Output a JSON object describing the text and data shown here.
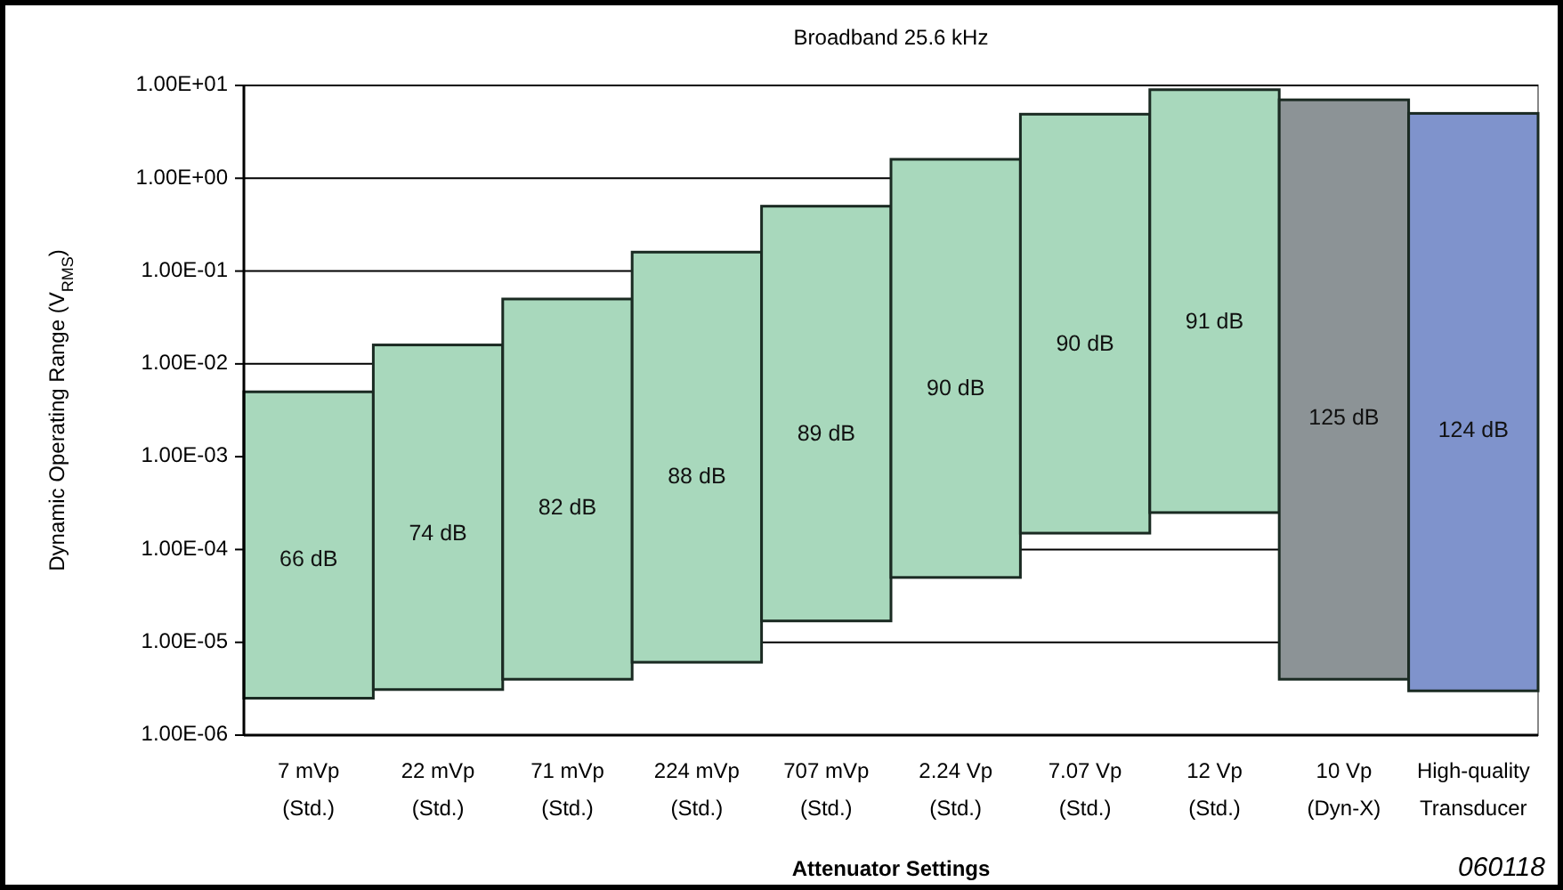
{
  "chart_data": {
    "type": "bar",
    "title": "Broadband 25.6 kHz",
    "xlabel": "Attenuator Settings",
    "ylabel": "Dynamic Operating Range (V$_{RMS}$)",
    "categories": [
      "7 mVp\n(Std.)",
      "22 mVp\n(Std.)",
      "71 mVp\n(Std.)",
      "224 mVp\n(Std.)",
      "707 mVp\n(Std.)",
      "2.24 Vp\n(Std.)",
      "7.07 Vp\n(Std.)",
      "12 Vp\n(Std.)",
      "10 Vp\n(Dyn-X)",
      "High-quality\nTransducer"
    ],
    "base": [
      2.5e-06,
      3.1e-06,
      4e-06,
      6.1e-06,
      1.7e-05,
      5e-05,
      0.00015,
      0.00025,
      4e-06,
      3e-06
    ],
    "values": [
      0.0049975,
      0.0159969,
      0.049996,
      0.1599939,
      0.499983,
      1.59995,
      4.89985,
      8.99975,
      6.999996,
      4.999997
    ],
    "colors": [
      "#a8d8bc",
      "#a8d8bc",
      "#a8d8bc",
      "#a8d8bc",
      "#a8d8bc",
      "#a8d8bc",
      "#a8d8bc",
      "#a8d8bc",
      "#8c9396",
      "#7f93cc"
    ],
    "log": "y",
    "grid": "y",
    "ylim": [
      1e-06,
      10
    ],
    "yticks": [
      {
        "value": 10,
        "label": "1.00E+01"
      },
      {
        "value": 1,
        "label": "1.00E+00"
      },
      {
        "value": 0.1,
        "label": "1.00E-01"
      },
      {
        "value": 0.01,
        "label": "1.00E-02"
      },
      {
        "value": 0.001,
        "label": "1.00E-03"
      },
      {
        "value": 0.0001,
        "label": "1.00E-04"
      },
      {
        "value": 1e-05,
        "label": "1.00E-05"
      },
      {
        "value": 1e-06,
        "label": "1.00E-06"
      }
    ],
    "annotations": [
      "060118",
      "66 dB",
      "74 dB",
      "82 dB",
      "88 dB",
      "89 dB",
      "90 dB",
      "90 dB",
      "91 dB",
      "125 dB",
      "124 dB"
    ]
  }
}
